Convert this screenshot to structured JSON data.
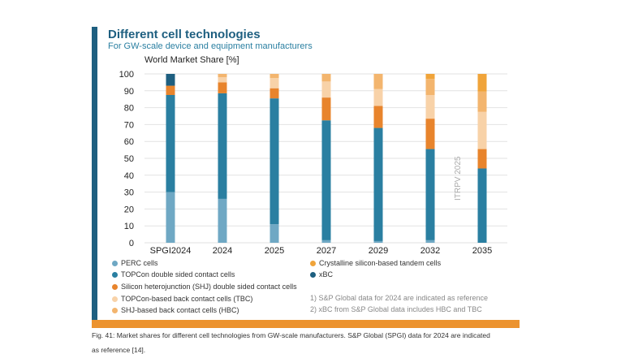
{
  "title": "Different cell technologies",
  "subtitle": "For GW-scale device and equipment manufacturers",
  "watermark": "ITRPV 2025",
  "notes": [
    "1) S&P Global data for 2024 are indicated as reference",
    "2) xBC from S&P Global data includes HBC and TBC"
  ],
  "caption": [
    "Fig. 41: Market shares for different cell technologies from GW-scale manufacturers. S&P Global (SPGI) data for 2024 are indicated",
    "as reference [14]."
  ],
  "chart_data": {
    "type": "bar",
    "stacked": true,
    "ylabel": "World Market Share [%]",
    "ylim": [
      0,
      100
    ],
    "yticks": [
      0,
      10,
      20,
      30,
      40,
      50,
      60,
      70,
      80,
      90,
      100
    ],
    "categories": [
      "SPGI2024",
      "2024",
      "2025",
      "2027",
      "2029",
      "2032",
      "2035"
    ],
    "grid": true,
    "series": [
      {
        "name": "PERC cells",
        "color": "#6fa8c4",
        "values": [
          30,
          26,
          11,
          1.5,
          1,
          1.5,
          0
        ]
      },
      {
        "name": "TOPCon double sided contact cells",
        "color": "#2a7fa1",
        "values": [
          57.5,
          62.5,
          74.5,
          71,
          67,
          54,
          44
        ]
      },
      {
        "name": "Silicon heterojunction (SHJ) double sided contact cells",
        "color": "#e8842c",
        "values": [
          5.5,
          6.5,
          6,
          13.5,
          13,
          18,
          11.5
        ]
      },
      {
        "name": "TOPCon-based back contact cells (TBC)",
        "color": "#f8d2a8",
        "values": [
          0,
          3,
          6,
          9.5,
          10,
          14,
          22
        ]
      },
      {
        "name": "SHJ-based back contact cells (HBC)",
        "color": "#f3b56e",
        "values": [
          0,
          2,
          2.5,
          4.5,
          9,
          9.5,
          12
        ]
      },
      {
        "name": "Crystalline silicon-based tandem cells",
        "color": "#f0a43a",
        "values": [
          0,
          0,
          0,
          0,
          0,
          3,
          10.5
        ]
      },
      {
        "name": "xBC",
        "color": "#1e5f80",
        "values": [
          7,
          0,
          0,
          0,
          0,
          0,
          0
        ]
      }
    ]
  }
}
